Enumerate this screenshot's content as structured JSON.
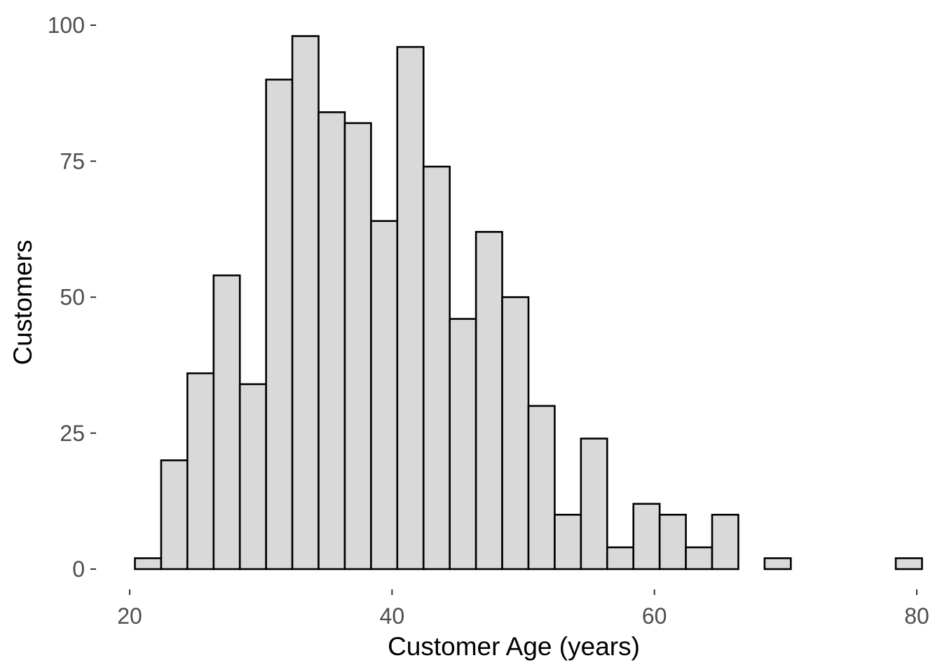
{
  "chart_data": {
    "type": "bar",
    "title": "",
    "xlabel": "Customer Age (years)",
    "ylabel": "Customers",
    "bin_width": 2,
    "bins": [
      {
        "start": 20.4,
        "end": 22.4,
        "count": 2
      },
      {
        "start": 22.4,
        "end": 24.4,
        "count": 20
      },
      {
        "start": 24.4,
        "end": 26.4,
        "count": 36
      },
      {
        "start": 26.4,
        "end": 28.4,
        "count": 54
      },
      {
        "start": 28.4,
        "end": 30.4,
        "count": 34
      },
      {
        "start": 30.4,
        "end": 32.4,
        "count": 90
      },
      {
        "start": 32.4,
        "end": 34.4,
        "count": 98
      },
      {
        "start": 34.4,
        "end": 36.4,
        "count": 84
      },
      {
        "start": 36.4,
        "end": 38.4,
        "count": 82
      },
      {
        "start": 38.4,
        "end": 40.4,
        "count": 64
      },
      {
        "start": 40.4,
        "end": 42.4,
        "count": 96
      },
      {
        "start": 42.4,
        "end": 44.4,
        "count": 74
      },
      {
        "start": 44.4,
        "end": 46.4,
        "count": 46
      },
      {
        "start": 46.4,
        "end": 48.4,
        "count": 62
      },
      {
        "start": 48.4,
        "end": 50.4,
        "count": 50
      },
      {
        "start": 50.4,
        "end": 52.4,
        "count": 30
      },
      {
        "start": 52.4,
        "end": 54.4,
        "count": 10
      },
      {
        "start": 54.4,
        "end": 56.4,
        "count": 24
      },
      {
        "start": 56.4,
        "end": 58.4,
        "count": 4
      },
      {
        "start": 58.4,
        "end": 60.4,
        "count": 12
      },
      {
        "start": 60.4,
        "end": 62.4,
        "count": 10
      },
      {
        "start": 62.4,
        "end": 64.4,
        "count": 4
      },
      {
        "start": 64.4,
        "end": 66.4,
        "count": 10
      },
      {
        "start": 66.4,
        "end": 68.4,
        "count": 0
      },
      {
        "start": 68.4,
        "end": 70.4,
        "count": 2
      },
      {
        "start": 70.4,
        "end": 72.4,
        "count": 0
      },
      {
        "start": 72.4,
        "end": 74.4,
        "count": 0
      },
      {
        "start": 74.4,
        "end": 76.4,
        "count": 0
      },
      {
        "start": 76.4,
        "end": 78.4,
        "count": 0
      },
      {
        "start": 78.4,
        "end": 80.4,
        "count": 2
      }
    ],
    "xlim": [
      17,
      80.4
    ],
    "ylim": [
      -3.5,
      104
    ],
    "x_ticks": [
      20,
      40,
      60,
      80
    ],
    "x_tick_labels": [
      "20",
      "40",
      "60",
      "80"
    ],
    "y_ticks": [
      0,
      25,
      50,
      75,
      100
    ],
    "y_tick_labels": [
      "0",
      "25",
      "50",
      "75",
      "100"
    ],
    "grid": false,
    "legend": "none",
    "colors": {
      "bar_fill": "#d9d9d9",
      "bar_outline": "#000000",
      "tick_text": "#4d4d4d"
    }
  }
}
